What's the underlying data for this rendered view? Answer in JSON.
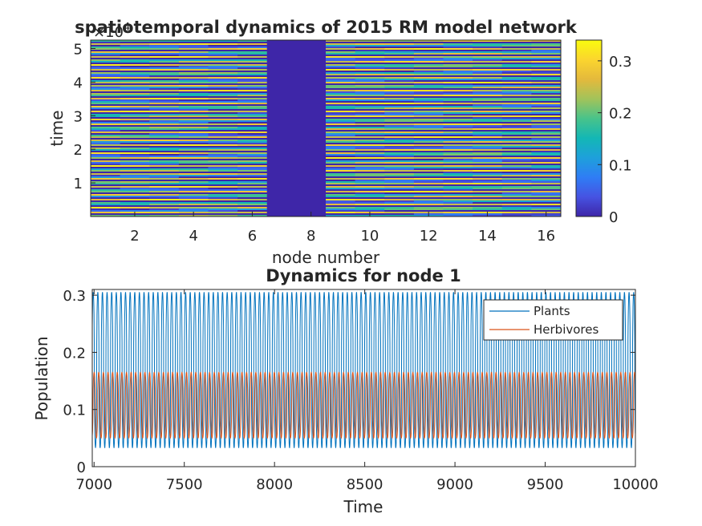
{
  "chart_data": [
    {
      "type": "heatmap",
      "title": "spatiotemporal dynamics of 2015 RM model network",
      "xlabel": "node number",
      "ylabel": "time",
      "y_exponent_label": "×10",
      "y_exponent_power": "4",
      "xlim": [
        0.5,
        16.5
      ],
      "ylim": [
        0,
        52500
      ],
      "xticks": [
        2,
        4,
        6,
        8,
        10,
        12,
        14,
        16
      ],
      "xtick_labels": [
        "2",
        "4",
        "6",
        "8",
        "10",
        "12",
        "14",
        "16"
      ],
      "yticks": [
        10000,
        20000,
        30000,
        40000,
        50000
      ],
      "ytick_labels": [
        "1",
        "2",
        "3",
        "4",
        "5"
      ],
      "nodes": [
        1,
        2,
        3,
        4,
        5,
        6,
        7,
        8,
        9,
        10,
        11,
        12,
        13,
        14,
        15,
        16
      ],
      "node_mean_level": [
        0.12,
        0.12,
        0.12,
        0.12,
        0.11,
        0.11,
        0,
        0,
        0.12,
        0.12,
        0.12,
        0.12,
        0.12,
        0.12,
        0.11,
        0.11
      ],
      "colorbar": {
        "clim": [
          0,
          0.34
        ],
        "ticks": [
          0,
          0.1,
          0.2,
          0.3
        ],
        "tick_labels": [
          "0",
          "0.1",
          "0.2",
          "0.3"
        ],
        "colormap": [
          "#3e26a8",
          "#4653e2",
          "#2f7df5",
          "#1ea0db",
          "#13b7b5",
          "#48c38a",
          "#a2c35a",
          "#e4b93c",
          "#fbd52e",
          "#f9fb0e"
        ]
      },
      "grid": false
    },
    {
      "type": "line",
      "title": "Dynamics for node 1",
      "xlabel": "Time",
      "ylabel": "Population",
      "xlim": [
        6990,
        10000
      ],
      "ylim": [
        0,
        0.31
      ],
      "xticks": [
        7000,
        7500,
        8000,
        8500,
        9000,
        9500,
        10000
      ],
      "xtick_labels": [
        "7000",
        "7500",
        "8000",
        "8500",
        "9000",
        "9500",
        "10000"
      ],
      "yticks": [
        0,
        0.1,
        0.2,
        0.3
      ],
      "ytick_labels": [
        "0",
        "0.1",
        "0.2",
        "0.3"
      ],
      "legend_position": "top-right",
      "grid": false,
      "cycle_period": 25.6,
      "series": [
        {
          "name": "Plants",
          "color": "#0072bd",
          "min": 0.033,
          "max": 0.305
        },
        {
          "name": "Herbivores",
          "color": "#d95319",
          "min": 0.05,
          "max": 0.165
        }
      ]
    }
  ]
}
